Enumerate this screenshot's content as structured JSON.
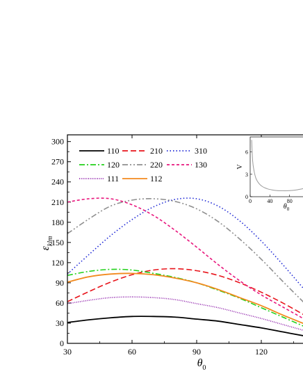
{
  "chart_data": [
    {
      "type": "line",
      "xlabel": "θ",
      "xlabel_sub": "0",
      "ylabel": "ε",
      "ylabel_sub": "klm",
      "xlim": [
        30,
        140
      ],
      "ylim": [
        0,
        310
      ],
      "x_ticks": [
        30,
        60,
        90,
        120
      ],
      "y_ticks": [
        0,
        30,
        60,
        90,
        120,
        150,
        180,
        210,
        240,
        270,
        300
      ],
      "legend_placement": "top-left",
      "series": [
        {
          "name": "110",
          "color": "#000000",
          "dash": "solid",
          "x": [
            30,
            40,
            50,
            60,
            70,
            80,
            90,
            100,
            110,
            120,
            130,
            140
          ],
          "y": [
            31,
            35,
            38,
            40,
            40,
            39,
            36,
            33,
            28,
            23,
            17,
            11
          ]
        },
        {
          "name": "210",
          "color": "#e8141b",
          "dash": "dash",
          "x": [
            30,
            40,
            50,
            60,
            70,
            80,
            90,
            100,
            110,
            120,
            130,
            140
          ],
          "y": [
            62,
            77,
            91,
            102,
            109,
            111,
            108,
            101,
            90,
            76,
            60,
            42
          ]
        },
        {
          "name": "310",
          "color": "#1e28d6",
          "dash": "dot",
          "x": [
            30,
            40,
            50,
            60,
            70,
            80,
            90,
            100,
            110,
            120,
            130,
            140
          ],
          "y": [
            103,
            132,
            160,
            184,
            203,
            214,
            215,
            204,
            182,
            152,
            117,
            80
          ]
        },
        {
          "name": "120",
          "color": "#22d11a",
          "dash": "dashdot",
          "x": [
            30,
            40,
            50,
            60,
            70,
            80,
            90,
            100,
            110,
            120,
            130,
            140
          ],
          "y": [
            101,
            107,
            110,
            109,
            104,
            98,
            90,
            79,
            67,
            53,
            39,
            25
          ]
        },
        {
          "name": "220",
          "color": "#8e8e8e",
          "dash": "dashdotdot",
          "x": [
            30,
            40,
            50,
            60,
            70,
            80,
            90,
            100,
            110,
            120,
            130,
            140
          ],
          "y": [
            163,
            185,
            204,
            213,
            215,
            211,
            200,
            181,
            155,
            125,
            92,
            60
          ]
        },
        {
          "name": "130",
          "color": "#e8157c",
          "dash": "shortdash",
          "x": [
            30,
            40,
            50,
            60,
            70,
            80,
            90,
            100,
            110,
            120,
            130,
            140
          ],
          "y": [
            210,
            215,
            215,
            206,
            190,
            168,
            143,
            117,
            93,
            72,
            54,
            36
          ]
        },
        {
          "name": "111",
          "color": "#8b1aa8",
          "dash": "finedot",
          "x": [
            30,
            40,
            50,
            60,
            70,
            80,
            90,
            100,
            110,
            120,
            130,
            140
          ],
          "y": [
            59,
            64,
            68,
            69,
            68,
            65,
            59,
            53,
            45,
            37,
            28,
            19
          ]
        },
        {
          "name": "112",
          "color": "#f28a1e",
          "dash": "solid",
          "x": [
            30,
            40,
            50,
            60,
            70,
            80,
            90,
            100,
            110,
            120,
            130,
            140
          ],
          "y": [
            91,
            99,
            103,
            104,
            102,
            97,
            90,
            80,
            68,
            56,
            42,
            29
          ]
        }
      ]
    },
    {
      "type": "line",
      "ylabel": "V",
      "xlabel": "θ",
      "xlabel_sub": "0",
      "xlim": [
        0,
        110
      ],
      "ylim": [
        0,
        8
      ],
      "x_ticks": [
        0,
        40,
        80
      ],
      "y_ticks": [
        0,
        3,
        6
      ],
      "series": [
        {
          "color": "#9a9a9a",
          "dash": "solid",
          "x": [
            3,
            5,
            8,
            12,
            18,
            25,
            35,
            45,
            55,
            65,
            75,
            85,
            95,
            105,
            110
          ],
          "y": [
            7.6,
            4.8,
            3.4,
            2.4,
            1.75,
            1.35,
            1.05,
            0.9,
            0.82,
            0.8,
            0.8,
            0.84,
            0.92,
            1.05,
            1.1
          ]
        }
      ]
    }
  ]
}
